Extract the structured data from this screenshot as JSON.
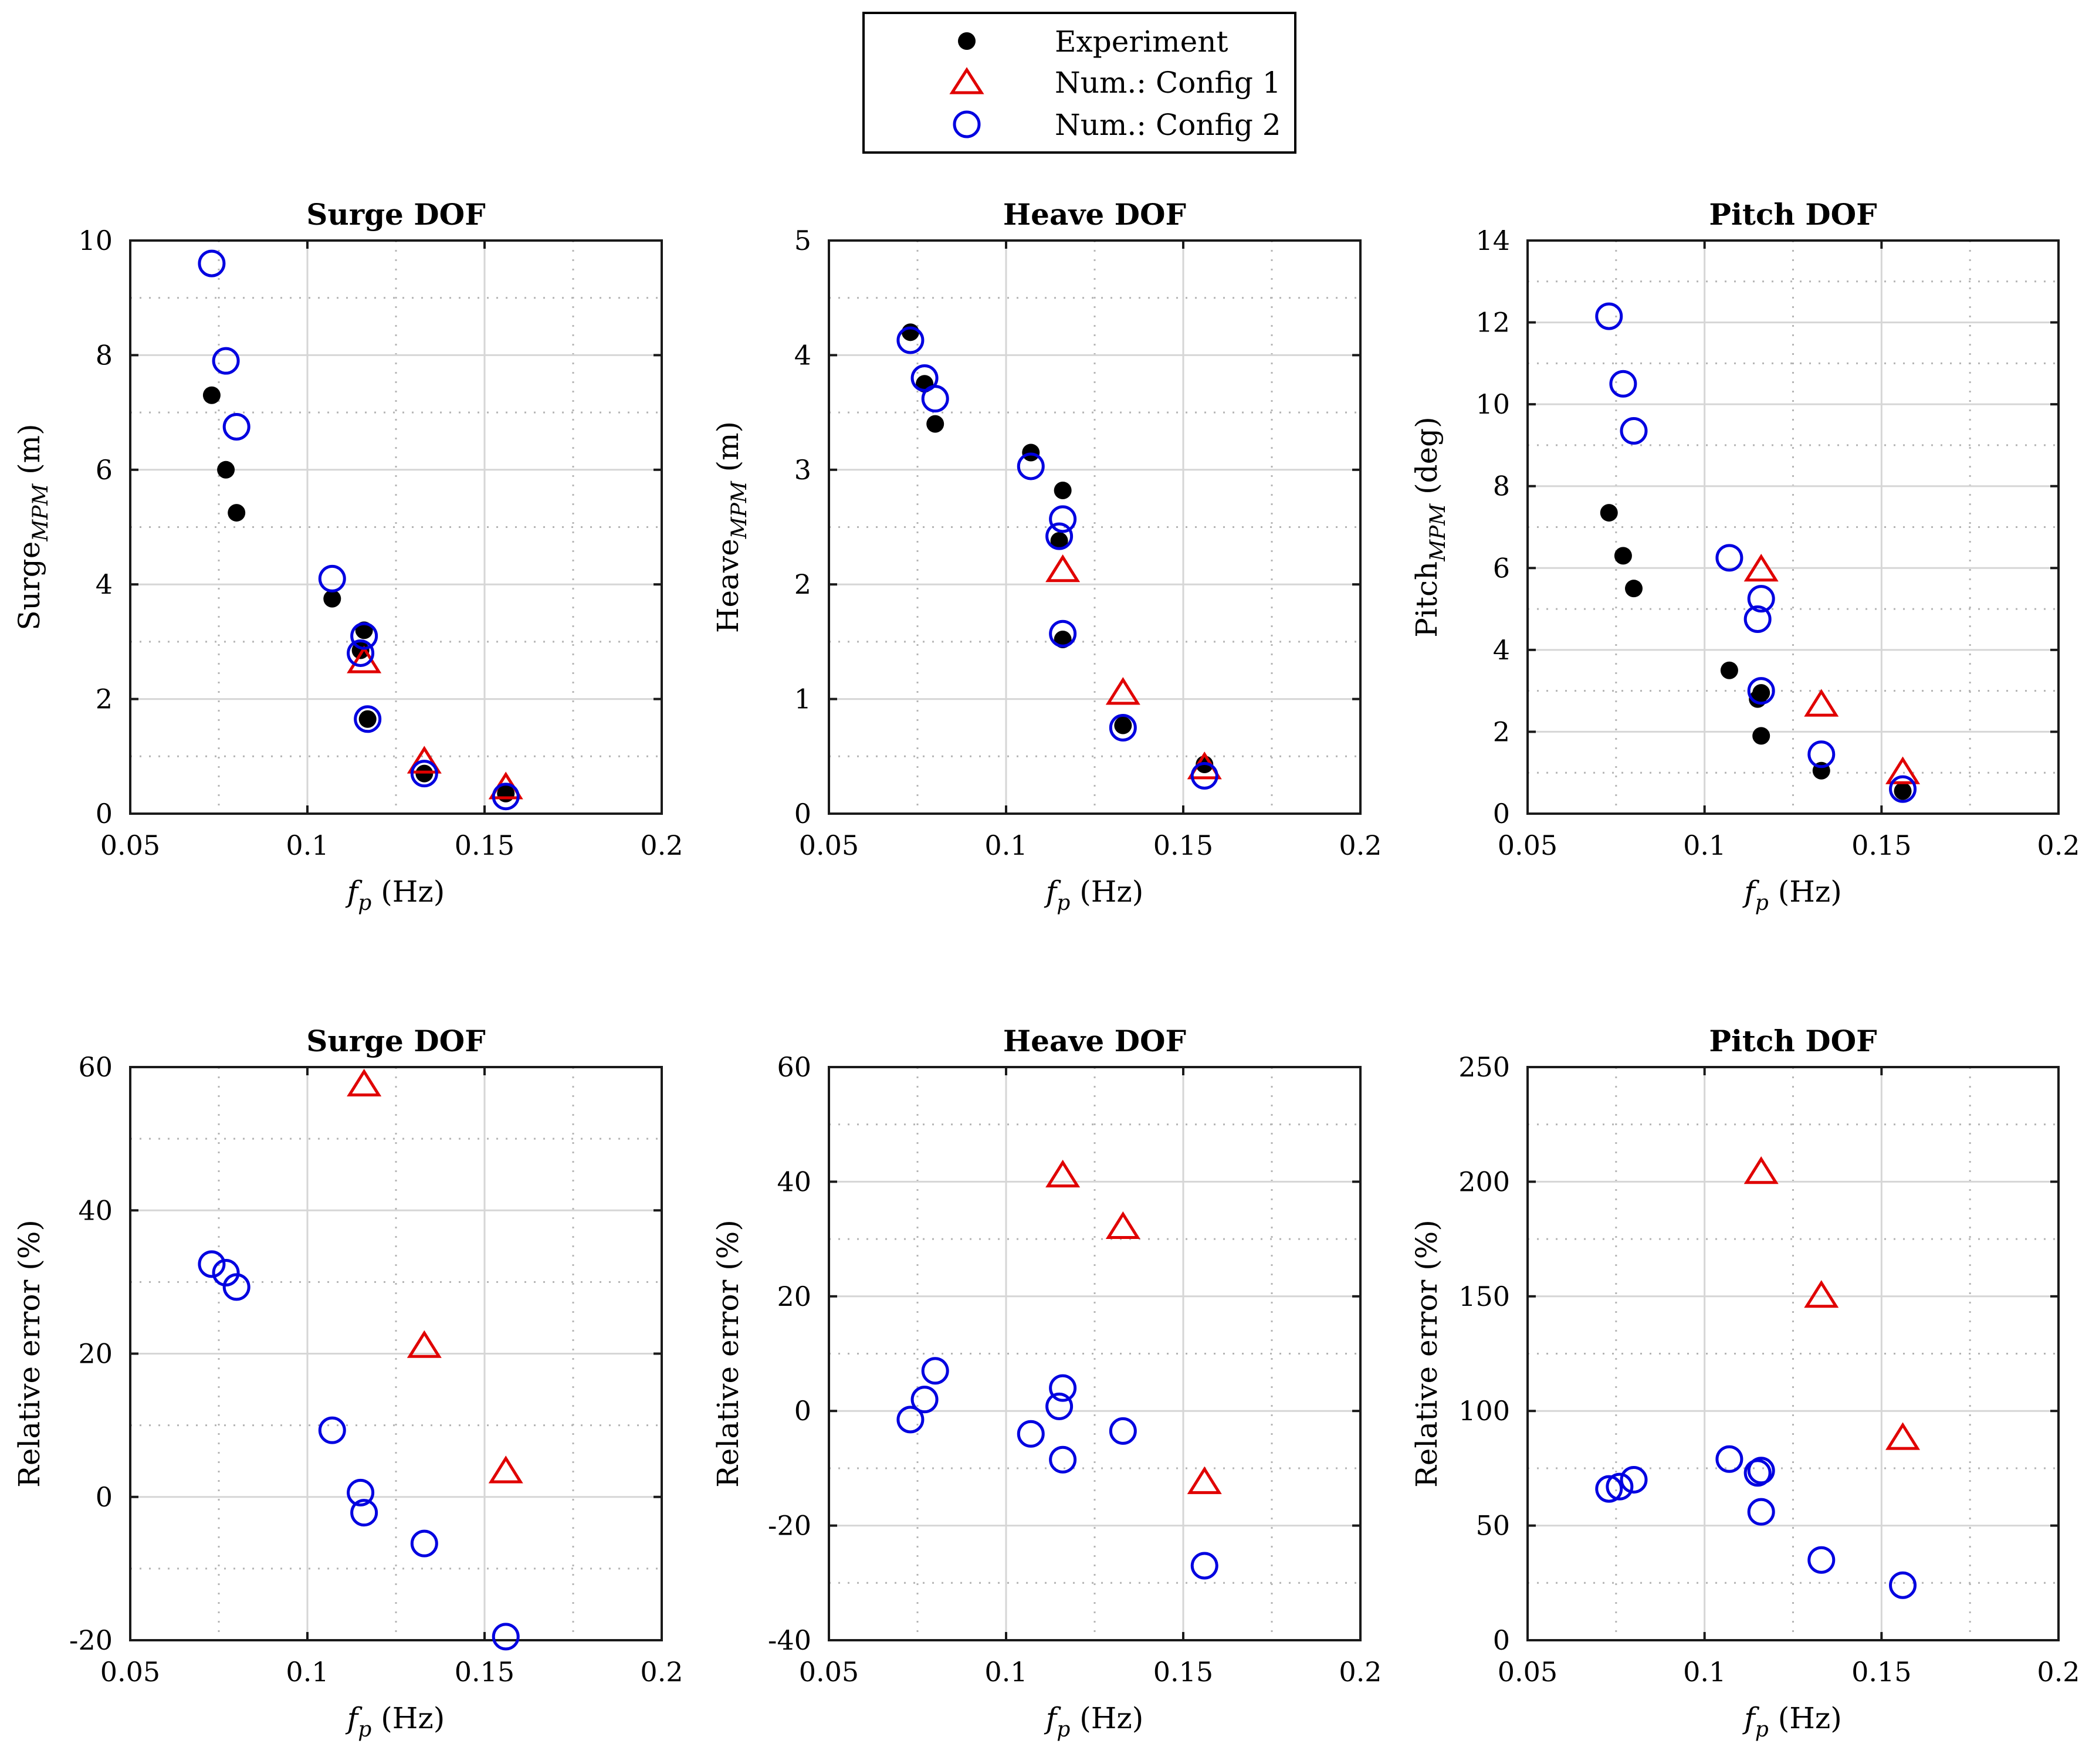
{
  "legend": {
    "items": [
      {
        "label": "Experiment",
        "marker": "dot",
        "color": "#000000"
      },
      {
        "label": "Num.: Config 1",
        "marker": "triangle",
        "color": "#e00000"
      },
      {
        "label": "Num.: Config 2",
        "marker": "circle",
        "color": "#0000e0"
      }
    ]
  },
  "chart_data": [
    {
      "type": "scatter",
      "title": "Surge DOF",
      "xlabel": "f_p (Hz)",
      "ylabel": "Surge_MPM (m)",
      "ylabel_base": "Surge",
      "ylabel_sub": "MPM",
      "ylabel_unit": " (m)",
      "xlim": [
        0.05,
        0.2
      ],
      "ylim": [
        0,
        10
      ],
      "xticks": [
        0.05,
        0.1,
        0.15,
        0.2
      ],
      "xtick_labels": [
        "0.05",
        "0.1",
        "0.15",
        "0.2"
      ],
      "yticks": [
        0,
        2,
        4,
        6,
        8,
        10
      ],
      "ytick_labels": [
        "0",
        "2",
        "4",
        "6",
        "8",
        "10"
      ],
      "grid": true,
      "series": [
        {
          "name": "Experiment",
          "x": [
            0.073,
            0.077,
            0.08,
            0.107,
            0.116,
            0.117,
            0.115,
            0.133,
            0.156
          ],
          "y": [
            7.3,
            6.0,
            5.25,
            3.75,
            3.2,
            1.65,
            2.85,
            0.7,
            0.35
          ]
        },
        {
          "name": "Num.: Config 1",
          "x": [
            0.116,
            0.133,
            0.156
          ],
          "y": [
            2.65,
            0.9,
            0.45
          ]
        },
        {
          "name": "Num.: Config 2",
          "x": [
            0.073,
            0.077,
            0.08,
            0.107,
            0.116,
            0.115,
            0.117,
            0.133,
            0.156
          ],
          "y": [
            9.6,
            7.9,
            6.75,
            4.1,
            3.1,
            2.8,
            1.65,
            0.7,
            0.3
          ]
        }
      ]
    },
    {
      "type": "scatter",
      "title": "Heave DOF",
      "xlabel": "f_p (Hz)",
      "ylabel": "Heave_MPM (m)",
      "ylabel_base": "Heave",
      "ylabel_sub": "MPM",
      "ylabel_unit": " (m)",
      "xlim": [
        0.05,
        0.2
      ],
      "ylim": [
        0,
        5
      ],
      "xticks": [
        0.05,
        0.1,
        0.15,
        0.2
      ],
      "xtick_labels": [
        "0.05",
        "0.1",
        "0.15",
        "0.2"
      ],
      "yticks": [
        0,
        1,
        2,
        3,
        4,
        5
      ],
      "ytick_labels": [
        "0",
        "1",
        "2",
        "3",
        "4",
        "5"
      ],
      "grid": true,
      "series": [
        {
          "name": "Experiment",
          "x": [
            0.073,
            0.077,
            0.08,
            0.107,
            0.116,
            0.115,
            0.116,
            0.133,
            0.156
          ],
          "y": [
            4.2,
            3.75,
            3.4,
            3.15,
            2.82,
            2.38,
            1.52,
            0.77,
            0.43
          ]
        },
        {
          "name": "Num.: Config 1",
          "x": [
            0.116,
            0.133,
            0.156
          ],
          "y": [
            2.12,
            1.05,
            0.4
          ]
        },
        {
          "name": "Num.: Config 2",
          "x": [
            0.073,
            0.077,
            0.08,
            0.107,
            0.116,
            0.115,
            0.116,
            0.133,
            0.156
          ],
          "y": [
            4.13,
            3.8,
            3.62,
            3.03,
            2.57,
            2.42,
            1.57,
            0.75,
            0.33
          ]
        }
      ]
    },
    {
      "type": "scatter",
      "title": "Pitch DOF",
      "xlabel": "f_p (Hz)",
      "ylabel": "Pitch_MPM (deg)",
      "ylabel_base": "Pitch",
      "ylabel_sub": "MPM",
      "ylabel_unit": " (deg)",
      "xlim": [
        0.05,
        0.2
      ],
      "ylim": [
        0,
        14
      ],
      "xticks": [
        0.05,
        0.1,
        0.15,
        0.2
      ],
      "xtick_labels": [
        "0.05",
        "0.1",
        "0.15",
        "0.2"
      ],
      "yticks": [
        0,
        2,
        4,
        6,
        8,
        10,
        12,
        14
      ],
      "ytick_labels": [
        "0",
        "2",
        "4",
        "6",
        "8",
        "10",
        "12",
        "14"
      ],
      "grid": true,
      "series": [
        {
          "name": "Experiment",
          "x": [
            0.073,
            0.077,
            0.08,
            0.107,
            0.115,
            0.116,
            0.116,
            0.133,
            0.156
          ],
          "y": [
            7.35,
            6.3,
            5.5,
            3.5,
            2.8,
            2.95,
            1.9,
            1.05,
            0.55
          ]
        },
        {
          "name": "Num.: Config 1",
          "x": [
            0.116,
            0.133,
            0.156
          ],
          "y": [
            5.95,
            2.65,
            1.0
          ]
        },
        {
          "name": "Num.: Config 2",
          "x": [
            0.073,
            0.077,
            0.08,
            0.107,
            0.116,
            0.115,
            0.116,
            0.133,
            0.156
          ],
          "y": [
            12.15,
            10.5,
            9.35,
            6.25,
            5.25,
            4.75,
            3.0,
            1.45,
            0.6
          ]
        }
      ]
    },
    {
      "type": "scatter",
      "title": "Surge DOF",
      "xlabel": "f_p (Hz)",
      "ylabel": "Relative error (%)",
      "ylabel_base": "Relative error (%)",
      "ylabel_sub": "",
      "ylabel_unit": "",
      "xlim": [
        0.05,
        0.2
      ],
      "ylim": [
        -20,
        60
      ],
      "xticks": [
        0.05,
        0.1,
        0.15,
        0.2
      ],
      "xtick_labels": [
        "0.05",
        "0.1",
        "0.15",
        "0.2"
      ],
      "yticks": [
        -20,
        0,
        20,
        40,
        60
      ],
      "ytick_labels": [
        "-20",
        "0",
        "20",
        "40",
        "60"
      ],
      "grid": true,
      "series": [
        {
          "name": "Num.: Config 1",
          "x": [
            0.116,
            0.133,
            0.156
          ],
          "y": [
            57.5,
            21.0,
            3.5
          ]
        },
        {
          "name": "Num.: Config 2",
          "x": [
            0.073,
            0.077,
            0.08,
            0.107,
            0.115,
            0.116,
            0.133,
            0.156
          ],
          "y": [
            32.5,
            31.3,
            29.3,
            9.3,
            0.6,
            -2.2,
            -6.5,
            -19.5
          ]
        }
      ]
    },
    {
      "type": "scatter",
      "title": "Heave DOF",
      "xlabel": "f_p (Hz)",
      "ylabel": "Relative error (%)",
      "ylabel_base": "Relative error (%)",
      "ylabel_sub": "",
      "ylabel_unit": "",
      "xlim": [
        0.05,
        0.2
      ],
      "ylim": [
        -40,
        60
      ],
      "xticks": [
        0.05,
        0.1,
        0.15,
        0.2
      ],
      "xtick_labels": [
        "0.05",
        "0.1",
        "0.15",
        "0.2"
      ],
      "yticks": [
        -40,
        -20,
        0,
        20,
        40,
        60
      ],
      "ytick_labels": [
        "-40",
        "-20",
        "0",
        "20",
        "40",
        "60"
      ],
      "grid": true,
      "series": [
        {
          "name": "Num.: Config 1",
          "x": [
            0.116,
            0.133,
            0.156
          ],
          "y": [
            41.0,
            32.0,
            -12.5
          ]
        },
        {
          "name": "Num.: Config 2",
          "x": [
            0.073,
            0.077,
            0.08,
            0.107,
            0.115,
            0.116,
            0.116,
            0.133,
            0.156
          ],
          "y": [
            -1.5,
            2.0,
            7.0,
            -4.0,
            0.8,
            4.0,
            -8.5,
            -3.5,
            -27.0
          ]
        }
      ]
    },
    {
      "type": "scatter",
      "title": "Pitch DOF",
      "xlabel": "f_p (Hz)",
      "ylabel": "Relative error (%)",
      "ylabel_base": "Relative error (%)",
      "ylabel_sub": "",
      "ylabel_unit": "",
      "xlim": [
        0.05,
        0.2
      ],
      "ylim": [
        0,
        250
      ],
      "xticks": [
        0.05,
        0.1,
        0.15,
        0.2
      ],
      "xtick_labels": [
        "0.05",
        "0.1",
        "0.15",
        "0.2"
      ],
      "yticks": [
        0,
        50,
        100,
        150,
        200,
        250
      ],
      "ytick_labels": [
        "0",
        "50",
        "100",
        "150",
        "200",
        "250"
      ],
      "grid": true,
      "series": [
        {
          "name": "Num.: Config 1",
          "x": [
            0.116,
            0.133,
            0.156
          ],
          "y": [
            204,
            150,
            88
          ]
        },
        {
          "name": "Num.: Config 2",
          "x": [
            0.073,
            0.076,
            0.08,
            0.107,
            0.115,
            0.116,
            0.116,
            0.133,
            0.156
          ],
          "y": [
            66,
            67,
            70,
            79,
            73,
            74,
            56,
            35,
            24
          ]
        }
      ]
    }
  ]
}
